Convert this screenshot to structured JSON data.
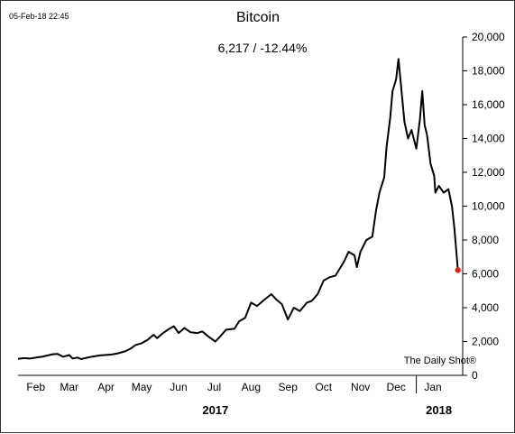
{
  "header": {
    "timestamp": "05-Feb-18 22:45",
    "subtitle": "6,217  /  -12.44%"
  },
  "watermark": "The Daily Shot®",
  "colors": {
    "line": "#000000",
    "last_point": "#e8231f",
    "axis": "#000000"
  },
  "chart_data": {
    "type": "line",
    "title": "Bitcoin",
    "xlabel": "",
    "ylabel": "",
    "ylim": [
      0,
      20000
    ],
    "xlim": [
      "2017-01-31",
      "2018-02-09"
    ],
    "y_ticks": [
      0,
      2000,
      4000,
      6000,
      8000,
      10000,
      12000,
      14000,
      16000,
      18000,
      20000
    ],
    "y_tick_labels": [
      "0",
      "2,000",
      "4,000",
      "6,000",
      "8,000",
      "10,000",
      "12,000",
      "14,000",
      "16,000",
      "18,000",
      "20,000"
    ],
    "month_labels": [
      {
        "label": "Feb",
        "date": "2017-02-15"
      },
      {
        "label": "Mar",
        "date": "2017-03-15"
      },
      {
        "label": "Apr",
        "date": "2017-04-15"
      },
      {
        "label": "May",
        "date": "2017-05-15"
      },
      {
        "label": "Jun",
        "date": "2017-06-15"
      },
      {
        "label": "Jul",
        "date": "2017-07-15"
      },
      {
        "label": "Aug",
        "date": "2017-08-15"
      },
      {
        "label": "Sep",
        "date": "2017-09-15"
      },
      {
        "label": "Oct",
        "date": "2017-10-15"
      },
      {
        "label": "Nov",
        "date": "2017-11-15"
      },
      {
        "label": "Dec",
        "date": "2017-12-15"
      },
      {
        "label": "Jan",
        "date": "2018-01-15"
      }
    ],
    "year_labels": [
      {
        "label": "2017",
        "date": "2017-07-16"
      },
      {
        "label": "2018",
        "date": "2018-01-20"
      }
    ],
    "year_divider": "2018-01-01",
    "series": [
      {
        "x": [
          "2017-01-31",
          "2017-02-05",
          "2017-02-10",
          "2017-02-15",
          "2017-02-20",
          "2017-02-25",
          "2017-03-01",
          "2017-03-05",
          "2017-03-10",
          "2017-03-15",
          "2017-03-18",
          "2017-03-22",
          "2017-03-25",
          "2017-04-01",
          "2017-04-10",
          "2017-04-20",
          "2017-04-25",
          "2017-05-01",
          "2017-05-05",
          "2017-05-10",
          "2017-05-15",
          "2017-05-20",
          "2017-05-25",
          "2017-05-28",
          "2017-06-01",
          "2017-06-06",
          "2017-06-11",
          "2017-06-15",
          "2017-06-20",
          "2017-06-25",
          "2017-07-01",
          "2017-07-05",
          "2017-07-10",
          "2017-07-16",
          "2017-07-20",
          "2017-07-25",
          "2017-08-01",
          "2017-08-05",
          "2017-08-10",
          "2017-08-15",
          "2017-08-20",
          "2017-08-25",
          "2017-09-01",
          "2017-09-05",
          "2017-09-10",
          "2017-09-15",
          "2017-09-20",
          "2017-09-25",
          "2017-10-01",
          "2017-10-05",
          "2017-10-10",
          "2017-10-15",
          "2017-10-20",
          "2017-10-25",
          "2017-11-01",
          "2017-11-05",
          "2017-11-10",
          "2017-11-12",
          "2017-11-15",
          "2017-11-20",
          "2017-11-25",
          "2017-11-28",
          "2017-12-01",
          "2017-12-05",
          "2017-12-07",
          "2017-12-10",
          "2017-12-12",
          "2017-12-15",
          "2017-12-17",
          "2017-12-19",
          "2017-12-22",
          "2017-12-25",
          "2017-12-28",
          "2018-01-01",
          "2018-01-04",
          "2018-01-06",
          "2018-01-08",
          "2018-01-10",
          "2018-01-13",
          "2018-01-16",
          "2018-01-17",
          "2018-01-20",
          "2018-01-24",
          "2018-01-28",
          "2018-01-31",
          "2018-02-02",
          "2018-02-05"
        ],
        "y": [
          970,
          1020,
          990,
          1050,
          1100,
          1180,
          1250,
          1270,
          1100,
          1200,
          1000,
          1050,
          960,
          1080,
          1180,
          1230,
          1300,
          1420,
          1550,
          1800,
          1900,
          2100,
          2400,
          2200,
          2450,
          2700,
          2900,
          2500,
          2800,
          2550,
          2500,
          2600,
          2300,
          2000,
          2300,
          2700,
          2750,
          3200,
          3400,
          4300,
          4100,
          4400,
          4800,
          4500,
          4200,
          3300,
          4000,
          3800,
          4300,
          4400,
          4800,
          5600,
          5800,
          5900,
          6700,
          7300,
          7100,
          6400,
          7300,
          8000,
          8200,
          9700,
          10800,
          11700,
          13500,
          15200,
          16800,
          17500,
          18700,
          17200,
          15000,
          14000,
          14500,
          13400,
          15100,
          16800,
          14800,
          14200,
          12500,
          11800,
          10800,
          11200,
          10800,
          11000,
          10000,
          8700,
          6217
        ]
      }
    ],
    "last_value": 6217,
    "last_change_pct": -12.44
  }
}
